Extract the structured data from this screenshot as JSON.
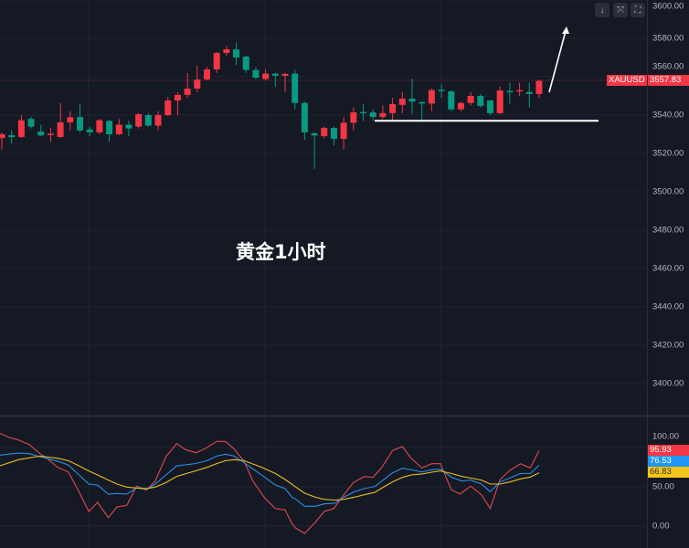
{
  "toolbar": {
    "buttons": [
      {
        "icon": "arrow-down-icon",
        "glyph": "↓"
      },
      {
        "icon": "collapse-icon",
        "glyph": "⤧"
      },
      {
        "icon": "fullscreen-icon",
        "glyph": "⛶"
      }
    ]
  },
  "caption": "黄金1小时",
  "symbol": {
    "name": "XAUUSD",
    "last_price": "3557.83"
  },
  "colors": {
    "up": "#f23645",
    "down": "#089981",
    "background": "#151924",
    "grid": "#1f2431",
    "osc_red": "#e0494e",
    "osc_blue": "#2a8fe6",
    "osc_yellow": "#e8c11d"
  },
  "price_axis": {
    "ticks": [
      "3600.00",
      "3580.00",
      "3560.00",
      "3540.00",
      "3520.00",
      "3500.00",
      "3480.00",
      "3460.00",
      "3440.00",
      "3420.00",
      "3400.00"
    ]
  },
  "oscillator_axis": {
    "ticks": [
      "100.00",
      "50.00",
      "0.00"
    ],
    "labels": [
      {
        "value": "95.93",
        "color": "#f23645"
      },
      {
        "value": "76.53",
        "color": "#2196f3"
      },
      {
        "value": "66.83",
        "color": "#f5c518"
      }
    ]
  },
  "chart_data": [
    {
      "type": "candlestick",
      "ylim": [
        3390,
        3600
      ],
      "support_line_price": 3537,
      "candles_ohlc": [
        [
          3528,
          3531,
          3522,
          3530
        ],
        [
          3529.5,
          3532,
          3525,
          3528.5
        ],
        [
          3528.6,
          3540,
          3528,
          3537.3
        ],
        [
          3538,
          3539,
          3533,
          3534
        ],
        [
          3531.4,
          3535,
          3529,
          3529.4
        ],
        [
          3530,
          3533.3,
          3526,
          3530.3
        ],
        [
          3528.6,
          3546.3,
          3528,
          3536.2
        ],
        [
          3536.2,
          3542,
          3532,
          3538.9
        ],
        [
          3539,
          3546,
          3531,
          3532
        ],
        [
          3532.5,
          3534,
          3529,
          3531
        ],
        [
          3531,
          3538,
          3530,
          3537.3
        ],
        [
          3537,
          3537.5,
          3526,
          3530
        ],
        [
          3530,
          3538,
          3529.5,
          3535
        ],
        [
          3535,
          3537,
          3529,
          3533
        ],
        [
          3534,
          3541,
          3533,
          3540.5
        ],
        [
          3540,
          3541,
          3534,
          3534.5
        ],
        [
          3534.5,
          3542,
          3532,
          3540
        ],
        [
          3540,
          3549.5,
          3539.5,
          3547.6
        ],
        [
          3547.6,
          3552,
          3540,
          3550.5
        ],
        [
          3550.5,
          3562,
          3549,
          3553.8
        ],
        [
          3553.8,
          3565.9,
          3552,
          3558.5
        ],
        [
          3558.6,
          3565,
          3558,
          3563.8
        ],
        [
          3563.8,
          3573,
          3562,
          3572.4
        ],
        [
          3572.4,
          3576,
          3571,
          3574.3
        ],
        [
          3574.3,
          3578,
          3566,
          3570
        ],
        [
          3570.5,
          3571,
          3562,
          3563.5
        ],
        [
          3563.5,
          3565,
          3558.7,
          3559.5
        ],
        [
          3558.8,
          3563.8,
          3558,
          3561.6
        ],
        [
          3561.6,
          3562,
          3554.8,
          3560.5
        ],
        [
          3560.5,
          3562,
          3552,
          3561.5
        ],
        [
          3561.6,
          3563.6,
          3543,
          3546.3
        ],
        [
          3546.3,
          3547,
          3527,
          3531
        ],
        [
          3530.5,
          3531,
          3512,
          3529.4
        ],
        [
          3529,
          3534,
          3528,
          3533.3
        ],
        [
          3533.3,
          3534,
          3524.3,
          3527.6
        ],
        [
          3527.6,
          3539,
          3522,
          3536
        ],
        [
          3536,
          3544,
          3532,
          3541.4
        ],
        [
          3541.6,
          3545.7,
          3537,
          3541.2
        ],
        [
          3541.4,
          3543,
          3537,
          3539
        ],
        [
          3539,
          3545,
          3538,
          3541
        ],
        [
          3541,
          3549,
          3536.8,
          3545.7
        ],
        [
          3545.3,
          3552,
          3541,
          3548.6
        ],
        [
          3548.6,
          3559,
          3540.5,
          3547
        ],
        [
          3546.8,
          3547,
          3536.5,
          3546
        ],
        [
          3546,
          3554,
          3542,
          3553
        ],
        [
          3553.2,
          3556,
          3549,
          3552.8
        ],
        [
          3552.4,
          3553,
          3542,
          3543
        ],
        [
          3543,
          3547,
          3542,
          3546.3
        ],
        [
          3546.3,
          3552,
          3545,
          3550
        ],
        [
          3550,
          3551,
          3544,
          3544.8
        ],
        [
          3547.6,
          3548,
          3540,
          3541
        ],
        [
          3541,
          3555,
          3540.5,
          3552.8
        ],
        [
          3552.6,
          3557,
          3546,
          3552.2
        ],
        [
          3552.4,
          3557,
          3550,
          3553
        ],
        [
          3552,
          3557,
          3544,
          3551
        ],
        [
          3551,
          3558.5,
          3549,
          3557.83
        ]
      ]
    },
    {
      "type": "line",
      "ylim": [
        -15,
        125
      ],
      "x_unit": "bar index",
      "series": [
        {
          "color": "#e0494e",
          "points": [
            [
              -0.2,
              118
            ],
            [
              0.75,
              112.8
            ],
            [
              1.7,
              109.7
            ],
            [
              2.8,
              103.8
            ],
            [
              3.9,
              92.2
            ],
            [
              4.8,
              84.5
            ],
            [
              5.7,
              74.8
            ],
            [
              6.8,
              69
            ],
            [
              7.9,
              43.8
            ],
            [
              8.9,
              18.6
            ],
            [
              9.8,
              30.2
            ],
            [
              10.9,
              10.8
            ],
            [
              11.8,
              24.4
            ],
            [
              12.8,
              26.4
            ],
            [
              13.8,
              50.8
            ],
            [
              14.8,
              45.7
            ],
            [
              15.7,
              57.3
            ],
            [
              16.8,
              88.4
            ],
            [
              17.9,
              105
            ],
            [
              18.8,
              97.3
            ],
            [
              19.9,
              93.4
            ],
            [
              20.9,
              99.2
            ],
            [
              22,
              107.8
            ],
            [
              22.9,
              107.8
            ],
            [
              23.8,
              98
            ],
            [
              24.8,
              82.6
            ],
            [
              25.7,
              57.3
            ],
            [
              26.9,
              36
            ],
            [
              28,
              22.4
            ],
            [
              29,
              20.6
            ],
            [
              29.7,
              3.1
            ],
            [
              30.1,
              -2.7
            ],
            [
              31,
              -9.3
            ],
            [
              32.1,
              5
            ],
            [
              33,
              18.6
            ],
            [
              34,
              22.4
            ],
            [
              35,
              39.9
            ],
            [
              36,
              55.5
            ],
            [
              37.1,
              63.1
            ],
            [
              38,
              62
            ],
            [
              38.9,
              74.8
            ],
            [
              40,
              96.2
            ],
            [
              41,
              101.2
            ],
            [
              41.9,
              86.4
            ],
            [
              43,
              74
            ],
            [
              44,
              79.4
            ],
            [
              44.9,
              79.4
            ],
            [
              46,
              46.5
            ],
            [
              46.9,
              40.7
            ],
            [
              48,
              50.8
            ],
            [
              49.1,
              39.9
            ],
            [
              50,
              22.4
            ],
            [
              51,
              59.3
            ],
            [
              52,
              70.9
            ],
            [
              53.1,
              79.4
            ],
            [
              54.1,
              74
            ],
            [
              55,
              96.2
            ]
          ]
        },
        {
          "color": "#2a8fe6",
          "points": [
            [
              -0.2,
              90.3
            ],
            [
              1.7,
              93
            ],
            [
              2.8,
              92.2
            ],
            [
              3.9,
              88.4
            ],
            [
              5.7,
              82.6
            ],
            [
              6.8,
              77.9
            ],
            [
              7.9,
              65.1
            ],
            [
              8.9,
              53.5
            ],
            [
              9.8,
              52.3
            ],
            [
              10.9,
              40.7
            ],
            [
              11.8,
              41.5
            ],
            [
              12.8,
              40.7
            ],
            [
              13.8,
              48.4
            ],
            [
              14.8,
              46.9
            ],
            [
              15.7,
              53.5
            ],
            [
              16.8,
              65.1
            ],
            [
              17.9,
              76.7
            ],
            [
              19.8,
              79.5
            ],
            [
              21,
              83.3
            ],
            [
              22,
              89.1
            ],
            [
              22.9,
              91.5
            ],
            [
              23.8,
              89.1
            ],
            [
              24.8,
              80.6
            ],
            [
              26.6,
              65.1
            ],
            [
              28,
              52.3
            ],
            [
              29,
              47.7
            ],
            [
              29.7,
              36.8
            ],
            [
              30.1,
              34.1
            ],
            [
              31,
              25.2
            ],
            [
              32.1,
              25.2
            ],
            [
              33,
              28.3
            ],
            [
              34.1,
              29.1
            ],
            [
              35,
              36.8
            ],
            [
              36.1,
              43.8
            ],
            [
              37.1,
              47.7
            ],
            [
              38.2,
              50.4
            ],
            [
              38.9,
              57.4
            ],
            [
              40,
              67.8
            ],
            [
              41,
              73.6
            ],
            [
              41.9,
              71.7
            ],
            [
              43,
              68.9
            ],
            [
              44,
              71.7
            ],
            [
              44.9,
              72.5
            ],
            [
              46,
              62.4
            ],
            [
              47.1,
              57.4
            ],
            [
              48,
              58.6
            ],
            [
              49.1,
              53.5
            ],
            [
              50,
              43.8
            ],
            [
              51,
              56.2
            ],
            [
              52,
              61.2
            ],
            [
              53.1,
              67
            ],
            [
              54.1,
              67
            ],
            [
              55,
              77.5
            ]
          ]
        },
        {
          "color": "#e8c11d",
          "points": [
            [
              -0.2,
              76.7
            ],
            [
              1.7,
              84.5
            ],
            [
              3.9,
              89.1
            ],
            [
              5.7,
              86.4
            ],
            [
              6.8,
              83.3
            ],
            [
              7.9,
              76.7
            ],
            [
              8.9,
              70.2
            ],
            [
              9.8,
              65.1
            ],
            [
              10.9,
              58.6
            ],
            [
              11.8,
              53.5
            ],
            [
              12.8,
              49.6
            ],
            [
              13.8,
              48.4
            ],
            [
              14.8,
              47.7
            ],
            [
              15.7,
              49.6
            ],
            [
              16.8,
              55.4
            ],
            [
              17.9,
              63.2
            ],
            [
              19.8,
              70.2
            ],
            [
              21,
              74.8
            ],
            [
              22,
              79.5
            ],
            [
              22.9,
              83.3
            ],
            [
              23.8,
              84.5
            ],
            [
              24.8,
              83.3
            ],
            [
              26.6,
              74.8
            ],
            [
              28,
              67
            ],
            [
              29,
              59.3
            ],
            [
              30.1,
              49.6
            ],
            [
              31,
              41.9
            ],
            [
              32.1,
              36.8
            ],
            [
              33,
              34.1
            ],
            [
              34.1,
              33
            ],
            [
              35,
              34.1
            ],
            [
              36.1,
              36.8
            ],
            [
              37.1,
              39.9
            ],
            [
              38.2,
              43
            ],
            [
              38.9,
              48.4
            ],
            [
              40,
              56.2
            ],
            [
              41,
              62
            ],
            [
              41.9,
              65.1
            ],
            [
              43,
              66.3
            ],
            [
              44,
              68.6
            ],
            [
              44.9,
              70.2
            ],
            [
              46,
              67
            ],
            [
              47.1,
              63.2
            ],
            [
              48,
              61.2
            ],
            [
              49.1,
              58.6
            ],
            [
              50,
              53.5
            ],
            [
              51,
              53.5
            ],
            [
              52,
              56.2
            ],
            [
              53.1,
              60.1
            ],
            [
              54.1,
              62.4
            ],
            [
              55,
              67.8
            ]
          ]
        }
      ]
    }
  ]
}
